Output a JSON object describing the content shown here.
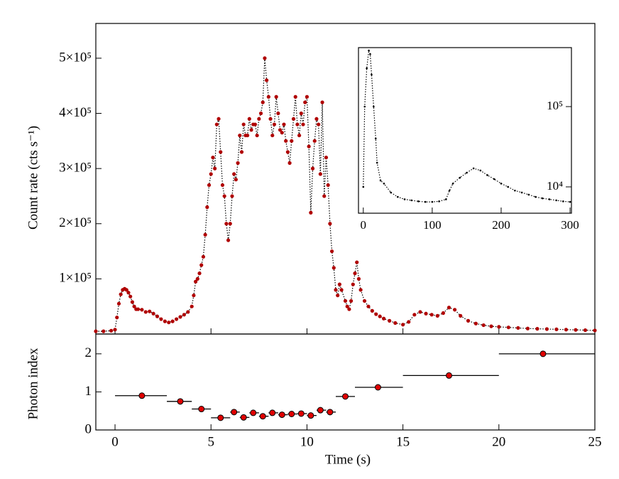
{
  "chart_data": [
    {
      "type": "line",
      "y_label": "Count rate (cts s⁻¹)",
      "color": "#b00000",
      "line_color": "#000000",
      "x": [
        -1,
        -0.6,
        -0.2,
        0,
        0.1,
        0.2,
        0.3,
        0.4,
        0.5,
        0.6,
        0.7,
        0.8,
        0.9,
        1.0,
        1.1,
        1.2,
        1.4,
        1.6,
        1.8,
        2.0,
        2.2,
        2.4,
        2.6,
        2.8,
        3.0,
        3.2,
        3.4,
        3.6,
        3.8,
        4.0,
        4.1,
        4.2,
        4.3,
        4.4,
        4.5,
        4.6,
        4.7,
        4.8,
        4.9,
        5.0,
        5.1,
        5.2,
        5.3,
        5.4,
        5.5,
        5.6,
        5.7,
        5.8,
        5.9,
        6.0,
        6.1,
        6.2,
        6.3,
        6.4,
        6.5,
        6.6,
        6.7,
        6.8,
        6.9,
        7.0,
        7.1,
        7.2,
        7.3,
        7.4,
        7.5,
        7.6,
        7.7,
        7.8,
        7.9,
        8.0,
        8.1,
        8.2,
        8.3,
        8.4,
        8.5,
        8.6,
        8.7,
        8.8,
        8.9,
        9.0,
        9.1,
        9.2,
        9.3,
        9.4,
        9.5,
        9.6,
        9.7,
        9.8,
        9.9,
        10.0,
        10.1,
        10.2,
        10.3,
        10.4,
        10.5,
        10.6,
        10.7,
        10.8,
        10.9,
        11.0,
        11.1,
        11.2,
        11.3,
        11.4,
        11.5,
        11.6,
        11.7,
        11.8,
        12.0,
        12.1,
        12.2,
        12.3,
        12.4,
        12.5,
        12.6,
        12.7,
        12.8,
        13.0,
        13.2,
        13.4,
        13.6,
        13.8,
        14.0,
        14.3,
        14.6,
        15.0,
        15.3,
        15.6,
        15.9,
        16.2,
        16.5,
        16.8,
        17.1,
        17.4,
        17.7,
        18.0,
        18.4,
        18.8,
        19.2,
        19.6,
        20.0,
        20.5,
        21,
        21.5,
        22,
        22.5,
        23,
        23.5,
        24,
        24.5,
        25
      ],
      "values": [
        5000,
        5000,
        6000,
        8000,
        30000,
        55000,
        72000,
        80000,
        82000,
        80000,
        75000,
        68000,
        58000,
        50000,
        45000,
        45000,
        44000,
        40000,
        41000,
        37000,
        32000,
        27000,
        23000,
        21000,
        23000,
        27000,
        31000,
        35000,
        40000,
        50000,
        70000,
        95000,
        100000,
        110000,
        125000,
        140000,
        180000,
        230000,
        270000,
        290000,
        320000,
        300000,
        380000,
        390000,
        330000,
        270000,
        250000,
        200000,
        170000,
        200000,
        250000,
        290000,
        280000,
        310000,
        360000,
        330000,
        380000,
        360000,
        360000,
        390000,
        370000,
        380000,
        380000,
        360000,
        390000,
        400000,
        420000,
        500000,
        460000,
        430000,
        390000,
        360000,
        380000,
        430000,
        400000,
        370000,
        365000,
        380000,
        350000,
        330000,
        310000,
        350000,
        390000,
        430000,
        380000,
        360000,
        400000,
        380000,
        420000,
        430000,
        340000,
        220000,
        300000,
        350000,
        390000,
        380000,
        290000,
        420000,
        250000,
        320000,
        270000,
        200000,
        150000,
        120000,
        80000,
        70000,
        90000,
        80000,
        60000,
        50000,
        45000,
        60000,
        90000,
        110000,
        130000,
        100000,
        80000,
        60000,
        50000,
        42000,
        36000,
        32000,
        28000,
        24000,
        20000,
        17000,
        22000,
        35000,
        40000,
        37000,
        35000,
        33000,
        38000,
        48000,
        44000,
        33000,
        24000,
        19000,
        16000,
        14000,
        13000,
        12000,
        11000,
        10000,
        9500,
        9000,
        8500,
        8000,
        7500,
        7000,
        6500
      ],
      "xlim": [
        -1,
        25
      ],
      "ylim": [
        0,
        563000
      ],
      "yticks": [
        {
          "value": 100000,
          "label": "1×10⁵"
        },
        {
          "value": 200000,
          "label": "2×10⁵"
        },
        {
          "value": 300000,
          "label": "3×10⁵"
        },
        {
          "value": 400000,
          "label": "4×10⁵"
        },
        {
          "value": 500000,
          "label": "5×10⁵"
        }
      ]
    },
    {
      "type": "scatter",
      "x_label": "Time (s)",
      "y_label": "Photon index",
      "color": "#e00000",
      "x": [
        1.4,
        3.4,
        4.5,
        5.5,
        6.2,
        6.7,
        7.2,
        7.7,
        8.2,
        8.7,
        9.2,
        9.7,
        10.2,
        10.7,
        11.2,
        12.0,
        13.7,
        17.4,
        22.3
      ],
      "x_low": [
        0,
        2.7,
        4.0,
        5.0,
        6.0,
        6.5,
        7.0,
        7.5,
        8.0,
        8.5,
        9.0,
        9.5,
        10.0,
        10.5,
        11.0,
        11.5,
        12.5,
        15.0,
        20.0
      ],
      "x_high": [
        2.7,
        4.0,
        5.0,
        6.0,
        6.5,
        7.0,
        7.5,
        8.0,
        8.5,
        9.0,
        9.5,
        10.0,
        10.5,
        11.0,
        11.5,
        12.5,
        15.0,
        20.0,
        25.0
      ],
      "values": [
        0.9,
        0.75,
        0.55,
        0.32,
        0.47,
        0.33,
        0.45,
        0.36,
        0.45,
        0.4,
        0.42,
        0.43,
        0.38,
        0.52,
        0.47,
        0.88,
        1.12,
        1.43,
        2.0
      ],
      "yerr": [
        0.03,
        0.06,
        0.03,
        0.03,
        0.03,
        0.03,
        0.03,
        0.03,
        0.03,
        0.03,
        0.03,
        0.03,
        0.03,
        0.03,
        0.03,
        0.03,
        0.03,
        0.03,
        0.07
      ],
      "xlim": [
        -1,
        25
      ],
      "ylim": [
        0,
        2.52
      ],
      "xticks": [
        0,
        5,
        10,
        15,
        20,
        25
      ],
      "yticks": [
        0,
        1,
        2
      ]
    },
    {
      "type": "line",
      "log_y": true,
      "color": "#000000",
      "line_color": "#000000",
      "x": [
        0,
        2,
        5,
        8,
        10,
        12,
        15,
        18,
        20,
        25,
        30,
        40,
        50,
        60,
        70,
        80,
        90,
        100,
        110,
        120,
        125,
        130,
        140,
        150,
        160,
        170,
        180,
        190,
        200,
        210,
        220,
        230,
        240,
        250,
        260,
        270,
        280,
        290,
        300
      ],
      "values": [
        10000,
        100000,
        300000,
        500000,
        450000,
        250000,
        100000,
        40000,
        20000,
        12000,
        11000,
        8500,
        7500,
        7000,
        6800,
        6600,
        6500,
        6500,
        6600,
        7000,
        9000,
        11000,
        13000,
        15000,
        17000,
        16000,
        14000,
        12500,
        11000,
        10000,
        9000,
        8500,
        8000,
        7500,
        7200,
        7000,
        6800,
        6600,
        6500
      ],
      "xlim": [
        -7,
        302
      ],
      "ylim": [
        4700,
        543000
      ],
      "xticks": [
        0,
        100,
        200,
        300
      ],
      "yticks": [
        {
          "value": 10000,
          "label": "10⁴"
        },
        {
          "value": 100000,
          "label": "10⁵"
        }
      ]
    }
  ]
}
